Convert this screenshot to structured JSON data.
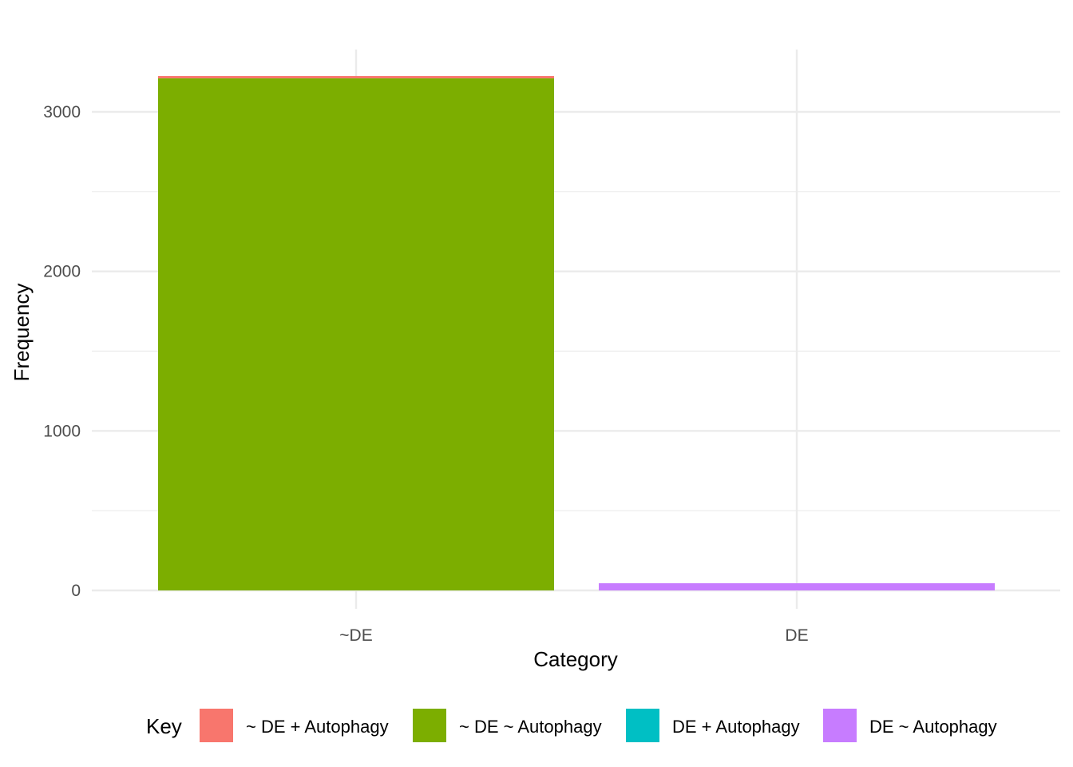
{
  "chart_data": {
    "type": "bar",
    "stacked": true,
    "xlabel": "Category",
    "ylabel": "Frequency",
    "categories": [
      "~DE",
      "DE"
    ],
    "ylim": [
      0,
      3000
    ],
    "yticks": [
      0,
      1000,
      2000,
      3000
    ],
    "grid": true,
    "legend": {
      "title": "Key",
      "position": "bottom"
    },
    "series": [
      {
        "name": "~ DE + Autophagy",
        "color": "#F8766D",
        "values": [
          15,
          0
        ]
      },
      {
        "name": "~ DE ~ Autophagy",
        "color": "#7CAE00",
        "values": [
          3210,
          0
        ]
      },
      {
        "name": "DE + Autophagy",
        "color": "#00BFC4",
        "values": [
          0,
          0
        ]
      },
      {
        "name": "DE ~ Autophagy",
        "color": "#C77CFF",
        "values": [
          0,
          45
        ]
      }
    ]
  }
}
